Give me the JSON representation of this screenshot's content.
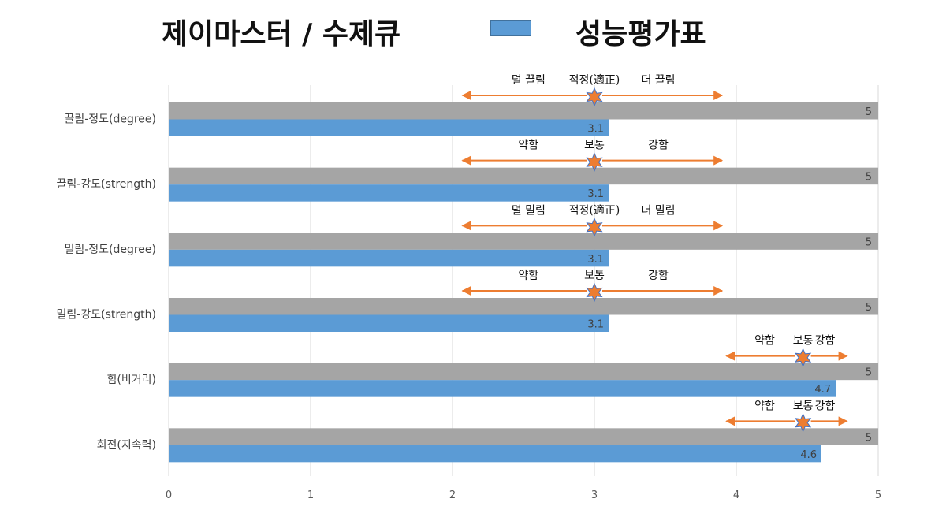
{
  "header": {
    "title": "제이마스터 / 수제큐",
    "legend_label": "성능평가표"
  },
  "colors": {
    "max_bar": "#a5a5a5",
    "score_bar": "#5b9bd5",
    "arrow": "#ed7d31",
    "star": "#ed7d31",
    "grid": "#d9d9d9"
  },
  "chart_data": {
    "type": "bar",
    "orientation": "horizontal",
    "categories": [
      "끌림-정도(degree)",
      "끌림-강도(strength)",
      "밀림-정도(degree)",
      "밀림-강도(strength)",
      "힘(비거리)",
      "회전(지속력)"
    ],
    "series": [
      {
        "name": "",
        "values": [
          5,
          5,
          5,
          5,
          5,
          5
        ]
      },
      {
        "name": "성능평가표",
        "values": [
          3.1,
          3.1,
          3.1,
          3.1,
          4.7,
          4.6
        ]
      }
    ],
    "xlim": [
      0,
      5
    ],
    "xticks": [
      "0",
      "1",
      "2",
      "3",
      "4",
      "5"
    ],
    "grid": true,
    "legend": "top",
    "annotations": [
      {
        "left": "덜 끌림",
        "mid": "적정(適正)",
        "right": "더 끌림",
        "marker": 3,
        "range": [
          2.07,
          3.9
        ]
      },
      {
        "left": "약함",
        "mid": "보통",
        "right": "강함",
        "marker": 3,
        "range": [
          2.07,
          3.9
        ]
      },
      {
        "left": "덜 밀림",
        "mid": "적정(適正)",
        "right": "더 밀림",
        "marker": 3,
        "range": [
          2.07,
          3.9
        ]
      },
      {
        "left": "약함",
        "mid": "보통",
        "right": "강함",
        "marker": 3,
        "range": [
          2.07,
          3.9
        ]
      },
      {
        "left": "약함",
        "mid": "보통",
        "right": "강함",
        "marker": 4.47,
        "range": [
          3.93,
          4.78
        ]
      },
      {
        "left": "약함",
        "mid": "보통",
        "right": "강함",
        "marker": 4.47,
        "range": [
          3.93,
          4.78
        ]
      }
    ]
  }
}
